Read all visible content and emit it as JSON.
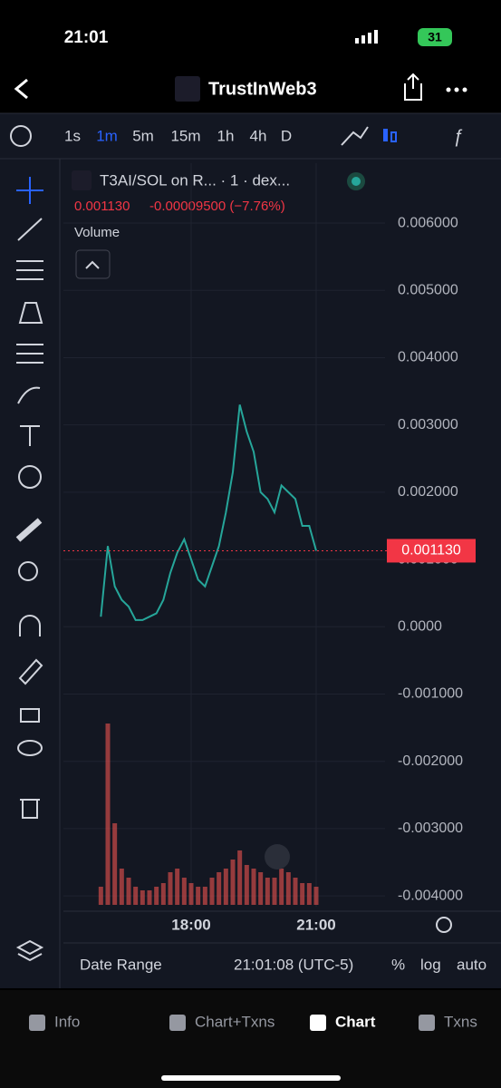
{
  "status_bar": {
    "time": "21:01",
    "battery": "31"
  },
  "header": {
    "title": "TrustInWeb3"
  },
  "toolbar": {
    "intervals": [
      "1s",
      "1m",
      "5m",
      "15m",
      "1h",
      "4h",
      "D"
    ],
    "active_interval": "1m"
  },
  "legend": {
    "symbol": "T3AI/SOL on R... · 1 · dex...",
    "last_price": "0.001130",
    "change": "-0.00009500 (−7.76%)",
    "volume_label": "Volume"
  },
  "chart_data": {
    "type": "line",
    "categories": [
      null,
      null,
      null,
      null,
      null,
      null,
      null,
      null,
      null,
      null,
      null,
      null,
      null,
      "18:00",
      null,
      null,
      null,
      null,
      null,
      null,
      null,
      null,
      null,
      null,
      null,
      null,
      null,
      null,
      null,
      null,
      null,
      "21:00"
    ],
    "series": [
      {
        "name": "Price",
        "color": "#26a69a",
        "values": [
          0.00015,
          0.0012,
          0.0006,
          0.0004,
          0.0003,
          0.0001,
          0.0001,
          0.00015,
          0.0002,
          0.0004,
          0.0008,
          0.0011,
          0.0013,
          0.001,
          0.0007,
          0.0006,
          0.0009,
          0.0012,
          0.0017,
          0.0023,
          0.0033,
          0.0029,
          0.0026,
          0.002,
          0.0019,
          0.0017,
          0.0021,
          0.002,
          0.0019,
          0.0015,
          0.0015,
          0.00113
        ]
      },
      {
        "name": "Volume",
        "color": "#ef5350",
        "values": [
          10,
          100,
          45,
          20,
          15,
          10,
          8,
          8,
          10,
          12,
          18,
          20,
          15,
          12,
          10,
          10,
          15,
          18,
          20,
          25,
          30,
          22,
          20,
          18,
          15,
          15,
          20,
          18,
          15,
          12,
          12,
          10
        ]
      }
    ],
    "ylim": [
      -0.00416,
      0.00689
    ],
    "yticks": [
      {
        "value": 0.006,
        "label": "0.006000"
      },
      {
        "value": 0.005,
        "label": "0.005000"
      },
      {
        "value": 0.004,
        "label": "0.004000"
      },
      {
        "value": 0.003,
        "label": "0.003000"
      },
      {
        "value": 0.002,
        "label": "0.002000"
      },
      {
        "value": 0.001,
        "label": "0.001000"
      },
      {
        "value": 0,
        "label": "0.0000"
      },
      {
        "value": -0.001,
        "label": "-0.001000"
      },
      {
        "value": -0.002,
        "label": "-0.002000"
      },
      {
        "value": -0.003,
        "label": "-0.003000"
      },
      {
        "value": -0.004,
        "label": "-0.004000"
      }
    ],
    "grid": true
  },
  "bottom_bar": {
    "date_range": "Date Range",
    "clock": "21:01:08 (UTC-5)",
    "percent": "%",
    "log": "log",
    "auto": "auto"
  },
  "tabs": [
    "Info",
    "Chart+Txns",
    "Chart",
    "Txns"
  ],
  "active_tab": "Chart"
}
